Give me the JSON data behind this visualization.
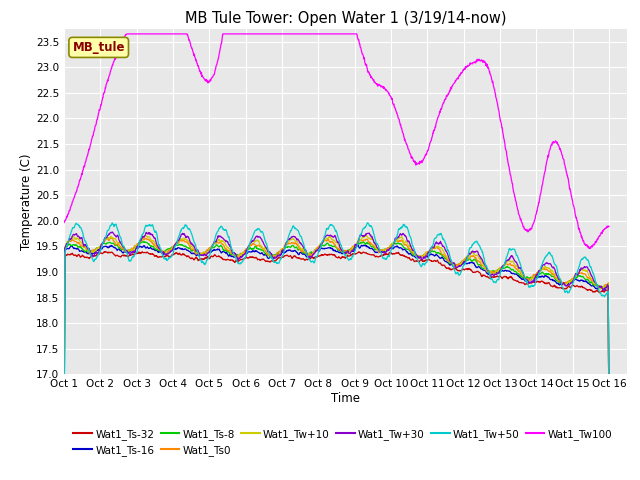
{
  "title": "MB Tule Tower: Open Water 1 (3/19/14-now)",
  "xlabel": "Time",
  "ylabel": "Temperature (C)",
  "ylim": [
    17.0,
    23.75
  ],
  "yticks": [
    17.0,
    17.5,
    18.0,
    18.5,
    19.0,
    19.5,
    20.0,
    20.5,
    21.0,
    21.5,
    22.0,
    22.5,
    23.0,
    23.5
  ],
  "xlim": [
    0,
    15.5
  ],
  "xtick_labels": [
    "Oct 1",
    "Oct 2",
    "Oct 3",
    "Oct 4",
    "Oct 5",
    "Oct 6",
    "Oct 7",
    "Oct 8",
    "Oct 9",
    "Oct 10",
    "Oct 11",
    "Oct 12",
    "Oct 13",
    "Oct 14",
    "Oct 15",
    "Oct 16"
  ],
  "xtick_positions": [
    0,
    1,
    2,
    3,
    4,
    5,
    6,
    7,
    8,
    9,
    10,
    11,
    12,
    13,
    14,
    15
  ],
  "series_colors": {
    "Wat1_Ts-32": "#cc0000",
    "Wat1_Ts-16": "#0000cc",
    "Wat1_Ts-8": "#00cc00",
    "Wat1_Ts0": "#ff8800",
    "Wat1_Tw+10": "#cccc00",
    "Wat1_Tw+30": "#8800cc",
    "Wat1_Tw+50": "#00cccc",
    "Wat1_Tw100": "#ff00ff"
  },
  "plot_bg_color": "#e8e8e8",
  "fig_bg_color": "#ffffff",
  "grid_color": "#ffffff",
  "inset_label": "MB_tule",
  "inset_label_color": "#880000",
  "inset_box_facecolor": "#ffffaa",
  "inset_box_edgecolor": "#888800"
}
